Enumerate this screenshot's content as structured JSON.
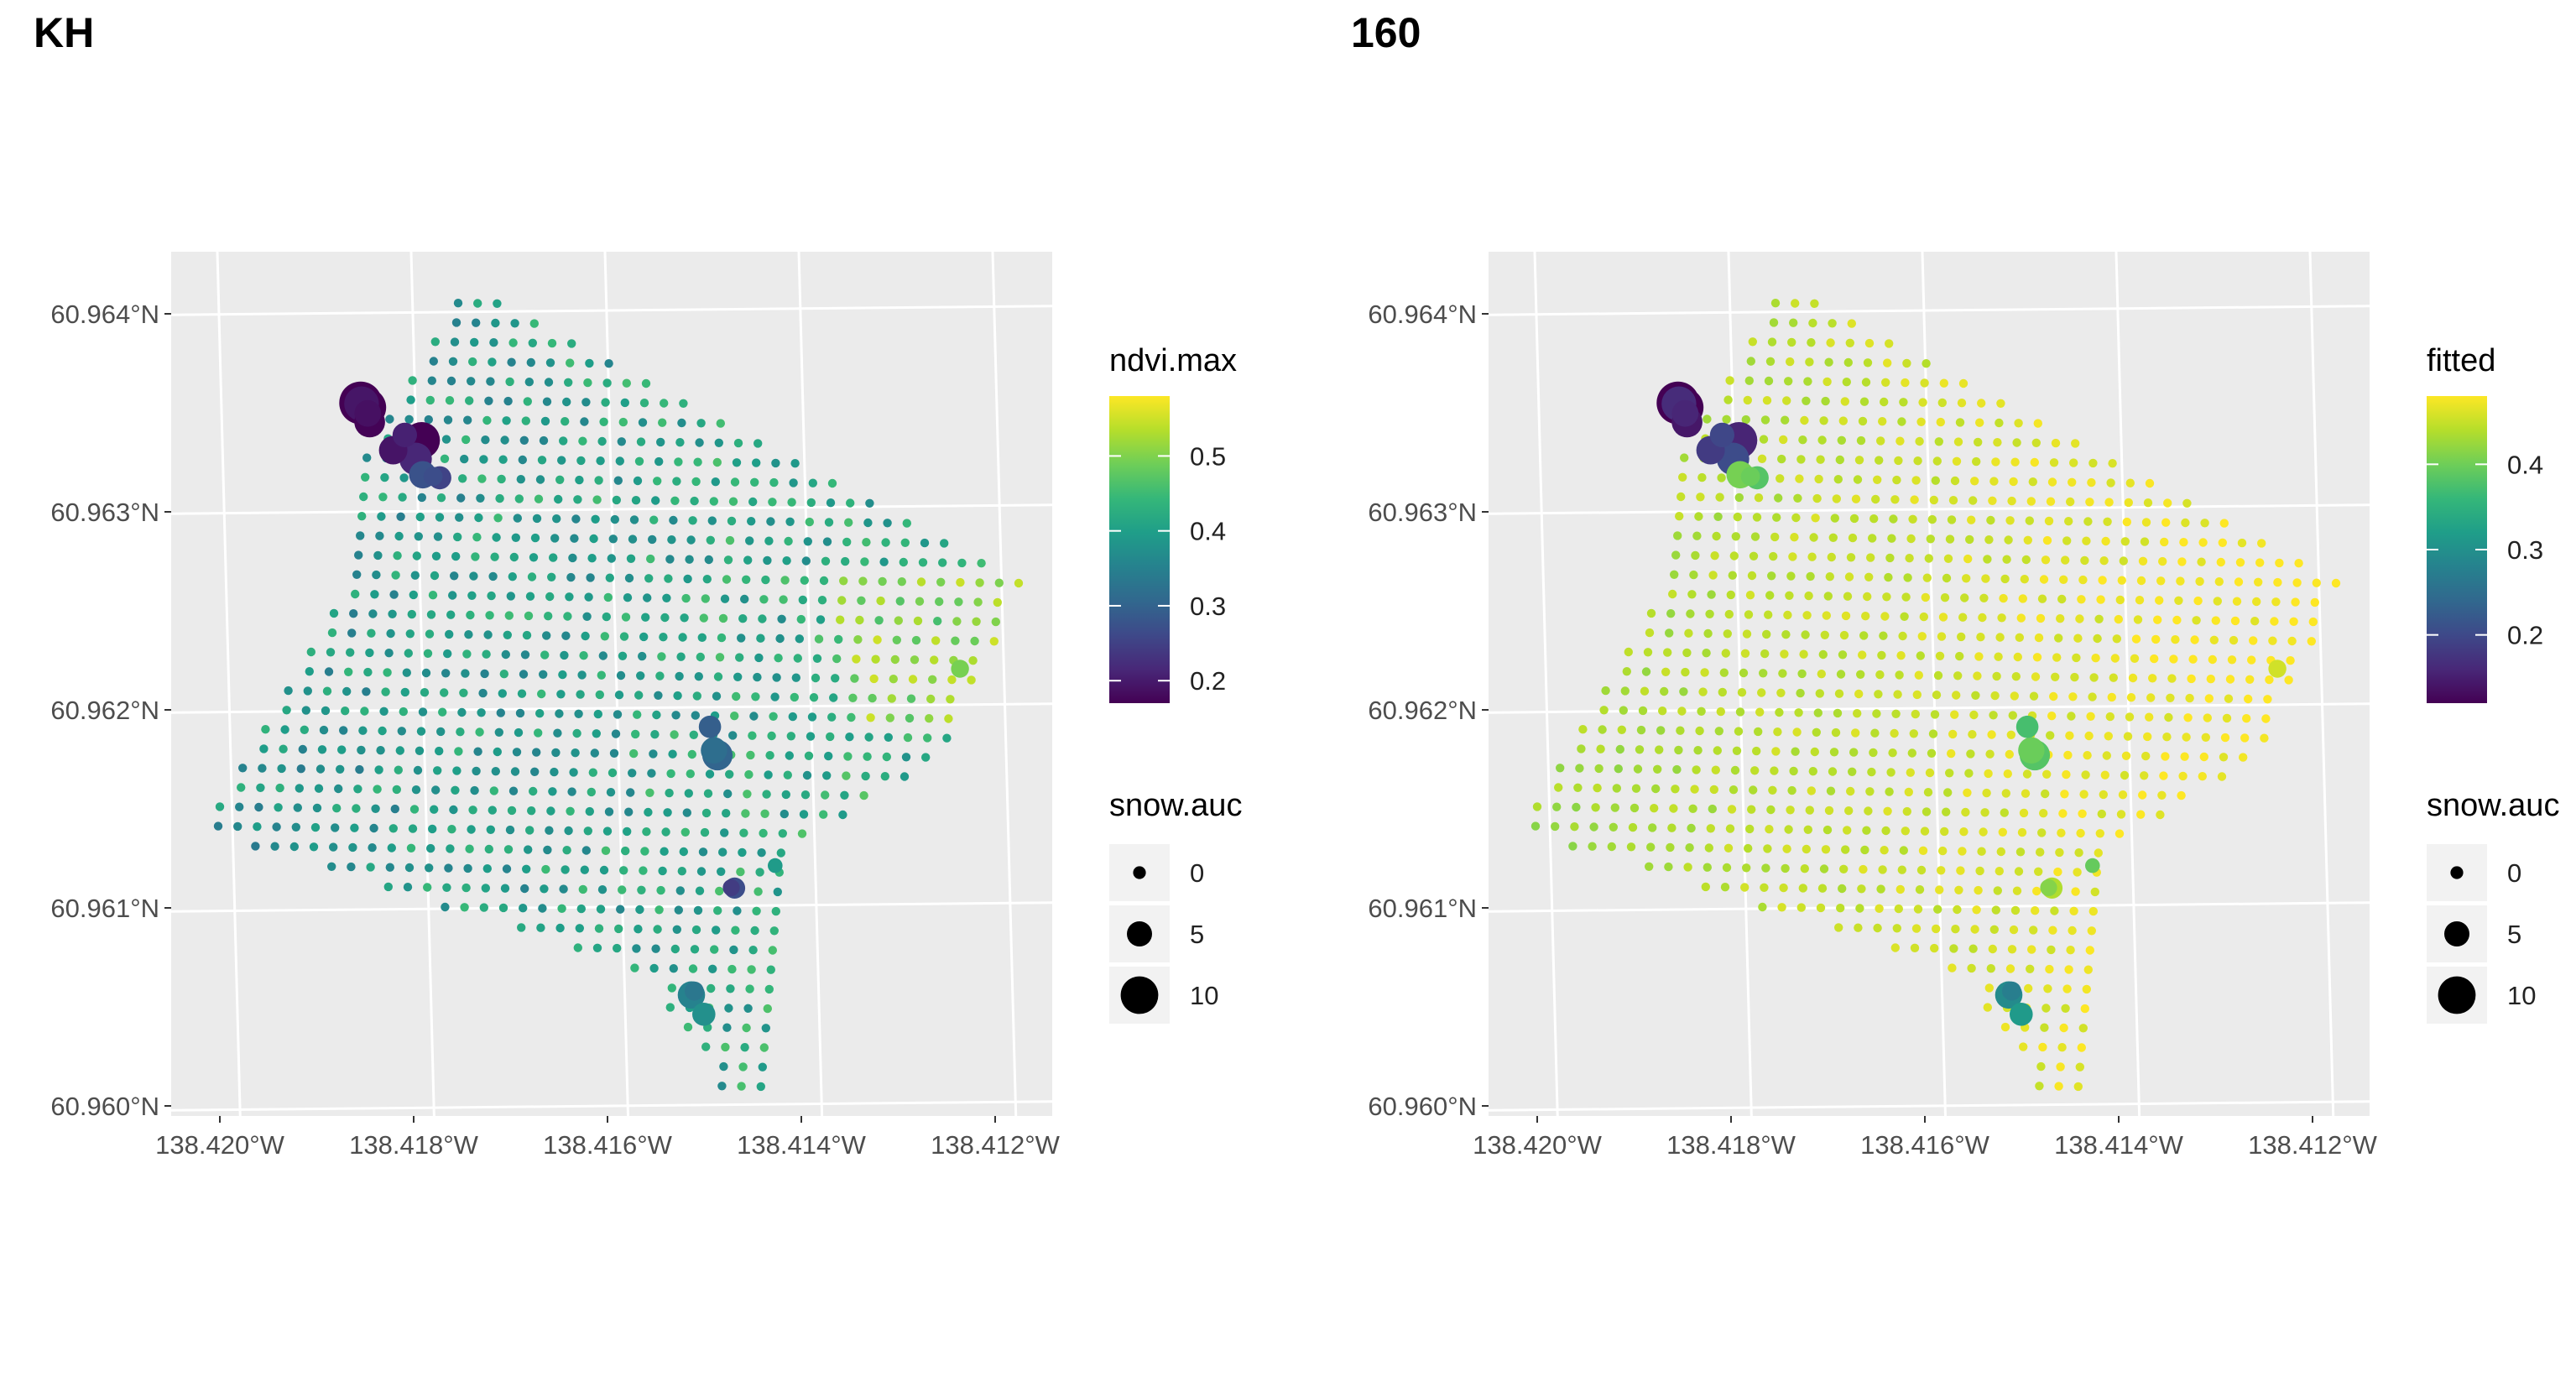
{
  "chart_data": [
    {
      "type": "scatter",
      "title": "KH",
      "xlabel": "",
      "ylabel": "",
      "x_ticks": [
        "138.420°W",
        "138.418°W",
        "138.416°W",
        "138.414°W",
        "138.412°W"
      ],
      "y_ticks": [
        "60.964°N",
        "60.963°N",
        "60.962°N",
        "60.961°N",
        "60.960°N"
      ],
      "color_legend": {
        "title": "ndvi.max",
        "ticks": [
          "0.5",
          "0.4",
          "0.3",
          "0.2"
        ],
        "range": [
          0.17,
          0.58
        ]
      },
      "size_legend": {
        "title": "snow.auc",
        "labels": [
          "0",
          "5",
          "10"
        ]
      },
      "clusters": [
        {
          "lon": -138.4184,
          "lat": 60.9635,
          "snow": 10,
          "value": 0.17
        },
        {
          "lon": -138.4181,
          "lat": 60.9633,
          "snow": 8,
          "value": 0.19
        },
        {
          "lon": -138.4178,
          "lat": 60.9631,
          "snow": 5,
          "value": 0.25
        },
        {
          "lon": -138.415,
          "lat": 60.9618,
          "snow": 6,
          "value": 0.3
        },
        {
          "lon": -138.4148,
          "lat": 60.961,
          "snow": 3,
          "value": 0.25
        },
        {
          "lon": -138.4153,
          "lat": 60.9605,
          "snow": 5,
          "value": 0.36
        },
        {
          "lon": -138.4125,
          "lat": 60.9622,
          "snow": 2,
          "value": 0.48
        },
        {
          "lon": -138.4143,
          "lat": 60.9612,
          "snow": 1,
          "value": 0.42
        }
      ]
    },
    {
      "type": "scatter",
      "title": "160",
      "xlabel": "",
      "ylabel": "",
      "x_ticks": [
        "138.420°W",
        "138.418°W",
        "138.416°W",
        "138.414°W",
        "138.412°W"
      ],
      "y_ticks": [
        "60.964°N",
        "60.963°N",
        "60.962°N",
        "60.961°N",
        "60.960°N"
      ],
      "color_legend": {
        "title": "fitted",
        "ticks": [
          "0.4",
          "0.3",
          "0.2"
        ],
        "range": [
          0.12,
          0.48
        ]
      },
      "size_legend": {
        "title": "snow.auc",
        "labels": [
          "0",
          "5",
          "10"
        ]
      },
      "clusters": [
        {
          "lon": -138.4184,
          "lat": 60.9635,
          "snow": 10,
          "value": 0.14
        },
        {
          "lon": -138.4181,
          "lat": 60.9633,
          "snow": 8,
          "value": 0.18
        },
        {
          "lon": -138.4178,
          "lat": 60.9631,
          "snow": 5,
          "value": 0.38
        },
        {
          "lon": -138.415,
          "lat": 60.9618,
          "snow": 6,
          "value": 0.38
        },
        {
          "lon": -138.4148,
          "lat": 60.961,
          "snow": 3,
          "value": 0.42
        },
        {
          "lon": -138.4153,
          "lat": 60.9605,
          "snow": 5,
          "value": 0.3
        },
        {
          "lon": -138.4125,
          "lat": 60.9622,
          "snow": 2,
          "value": 0.44
        },
        {
          "lon": -138.4143,
          "lat": 60.9612,
          "snow": 1,
          "value": 0.42
        }
      ]
    }
  ]
}
